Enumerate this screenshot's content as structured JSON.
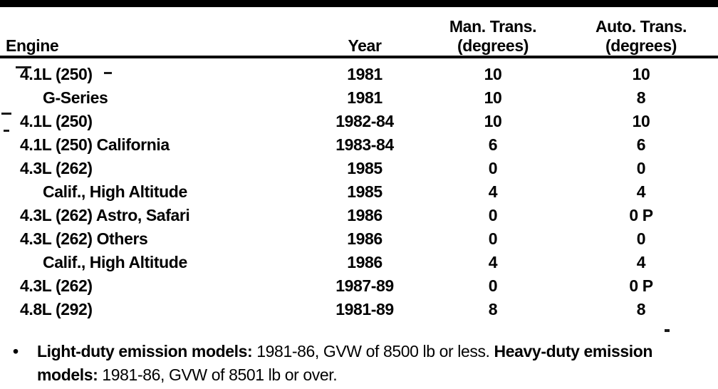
{
  "colors": {
    "ink": "#000000",
    "paper": "#ffffff"
  },
  "header": {
    "engine": "Engine",
    "year": "Year",
    "man_trans_line1": "Man. Trans.",
    "man_trans_line2": "(degrees)",
    "auto_trans_line1": "Auto. Trans.",
    "auto_trans_line2": "(degrees)"
  },
  "rows": [
    {
      "engine": "4.1L (250)",
      "year": "1981",
      "man": "10",
      "auto": "10"
    },
    {
      "engine": "G-Series",
      "year": "1981",
      "man": "10",
      "auto": "8"
    },
    {
      "engine": "4.1L (250)",
      "year": "1982-84",
      "man": "10",
      "auto": "10"
    },
    {
      "engine": "4.1L (250) California",
      "year": "1983-84",
      "man": "6",
      "auto": "6"
    },
    {
      "engine": "4.3L (262)",
      "year": "1985",
      "man": "0",
      "auto": "0"
    },
    {
      "engine": "Calif., High Altitude",
      "year": "1985",
      "man": "4",
      "auto": "4"
    },
    {
      "engine": "4.3L (262) Astro, Safari",
      "year": "1986",
      "man": "0",
      "auto": "0 P"
    },
    {
      "engine": "4.3L (262) Others",
      "year": "1986",
      "man": "0",
      "auto": "0"
    },
    {
      "engine": "Calif., High Altitude",
      "year": "1986",
      "man": "4",
      "auto": "4"
    },
    {
      "engine": "4.3L (262)",
      "year": "1987-89",
      "man": "0",
      "auto": "0 P"
    },
    {
      "engine": "4.8L (292)",
      "year": "1981-89",
      "man": "8",
      "auto": "8"
    }
  ],
  "footnote": {
    "bullet": "•",
    "bold_label_1": "Light-duty emission models:",
    "text_1": " 1981-86, GVW of 8500 lb or less. ",
    "bold_label_2_line1": "Heavy-duty emission",
    "bold_label_2_line2": "models:",
    "text_2": " 1981-86, GVW of 8501 lb or over."
  }
}
